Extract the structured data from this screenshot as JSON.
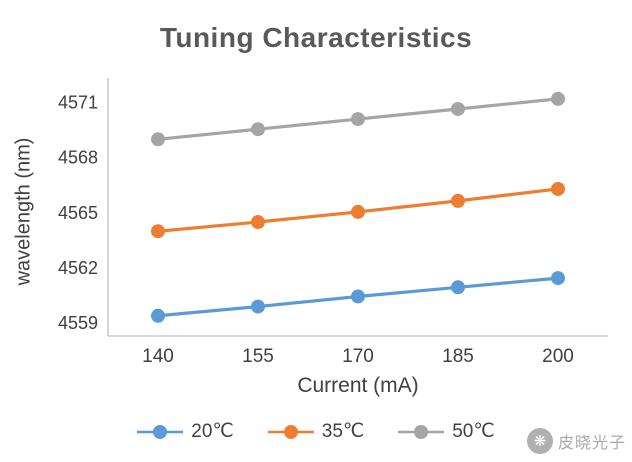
{
  "chart_data": {
    "type": "line",
    "title": "Tuning Characteristics",
    "xlabel": "Current (mA)",
    "ylabel": "wavelength (nm)",
    "x": [
      140,
      155,
      170,
      185,
      200
    ],
    "series": [
      {
        "name": "20℃",
        "color": "#5B9BD5",
        "values": [
          4559.4,
          4559.9,
          4560.45,
          4560.95,
          4561.45
        ]
      },
      {
        "name": "35℃",
        "color": "#ED7D31",
        "values": [
          4564.0,
          4564.5,
          4565.05,
          4565.65,
          4566.3
        ]
      },
      {
        "name": "50℃",
        "color": "#A5A5A5",
        "values": [
          4569.0,
          4569.55,
          4570.1,
          4570.65,
          4571.2
        ]
      }
    ],
    "yticks": [
      4559,
      4562,
      4565,
      4568,
      4571
    ],
    "ylim": [
      4558.3,
      4571.9
    ],
    "grid": false,
    "legend_position": "bottom",
    "axis_color": "#BFBFBF",
    "tick_color": "#404040"
  },
  "watermark": {
    "text": "皮晓光子",
    "logo_glyph": "❋"
  }
}
